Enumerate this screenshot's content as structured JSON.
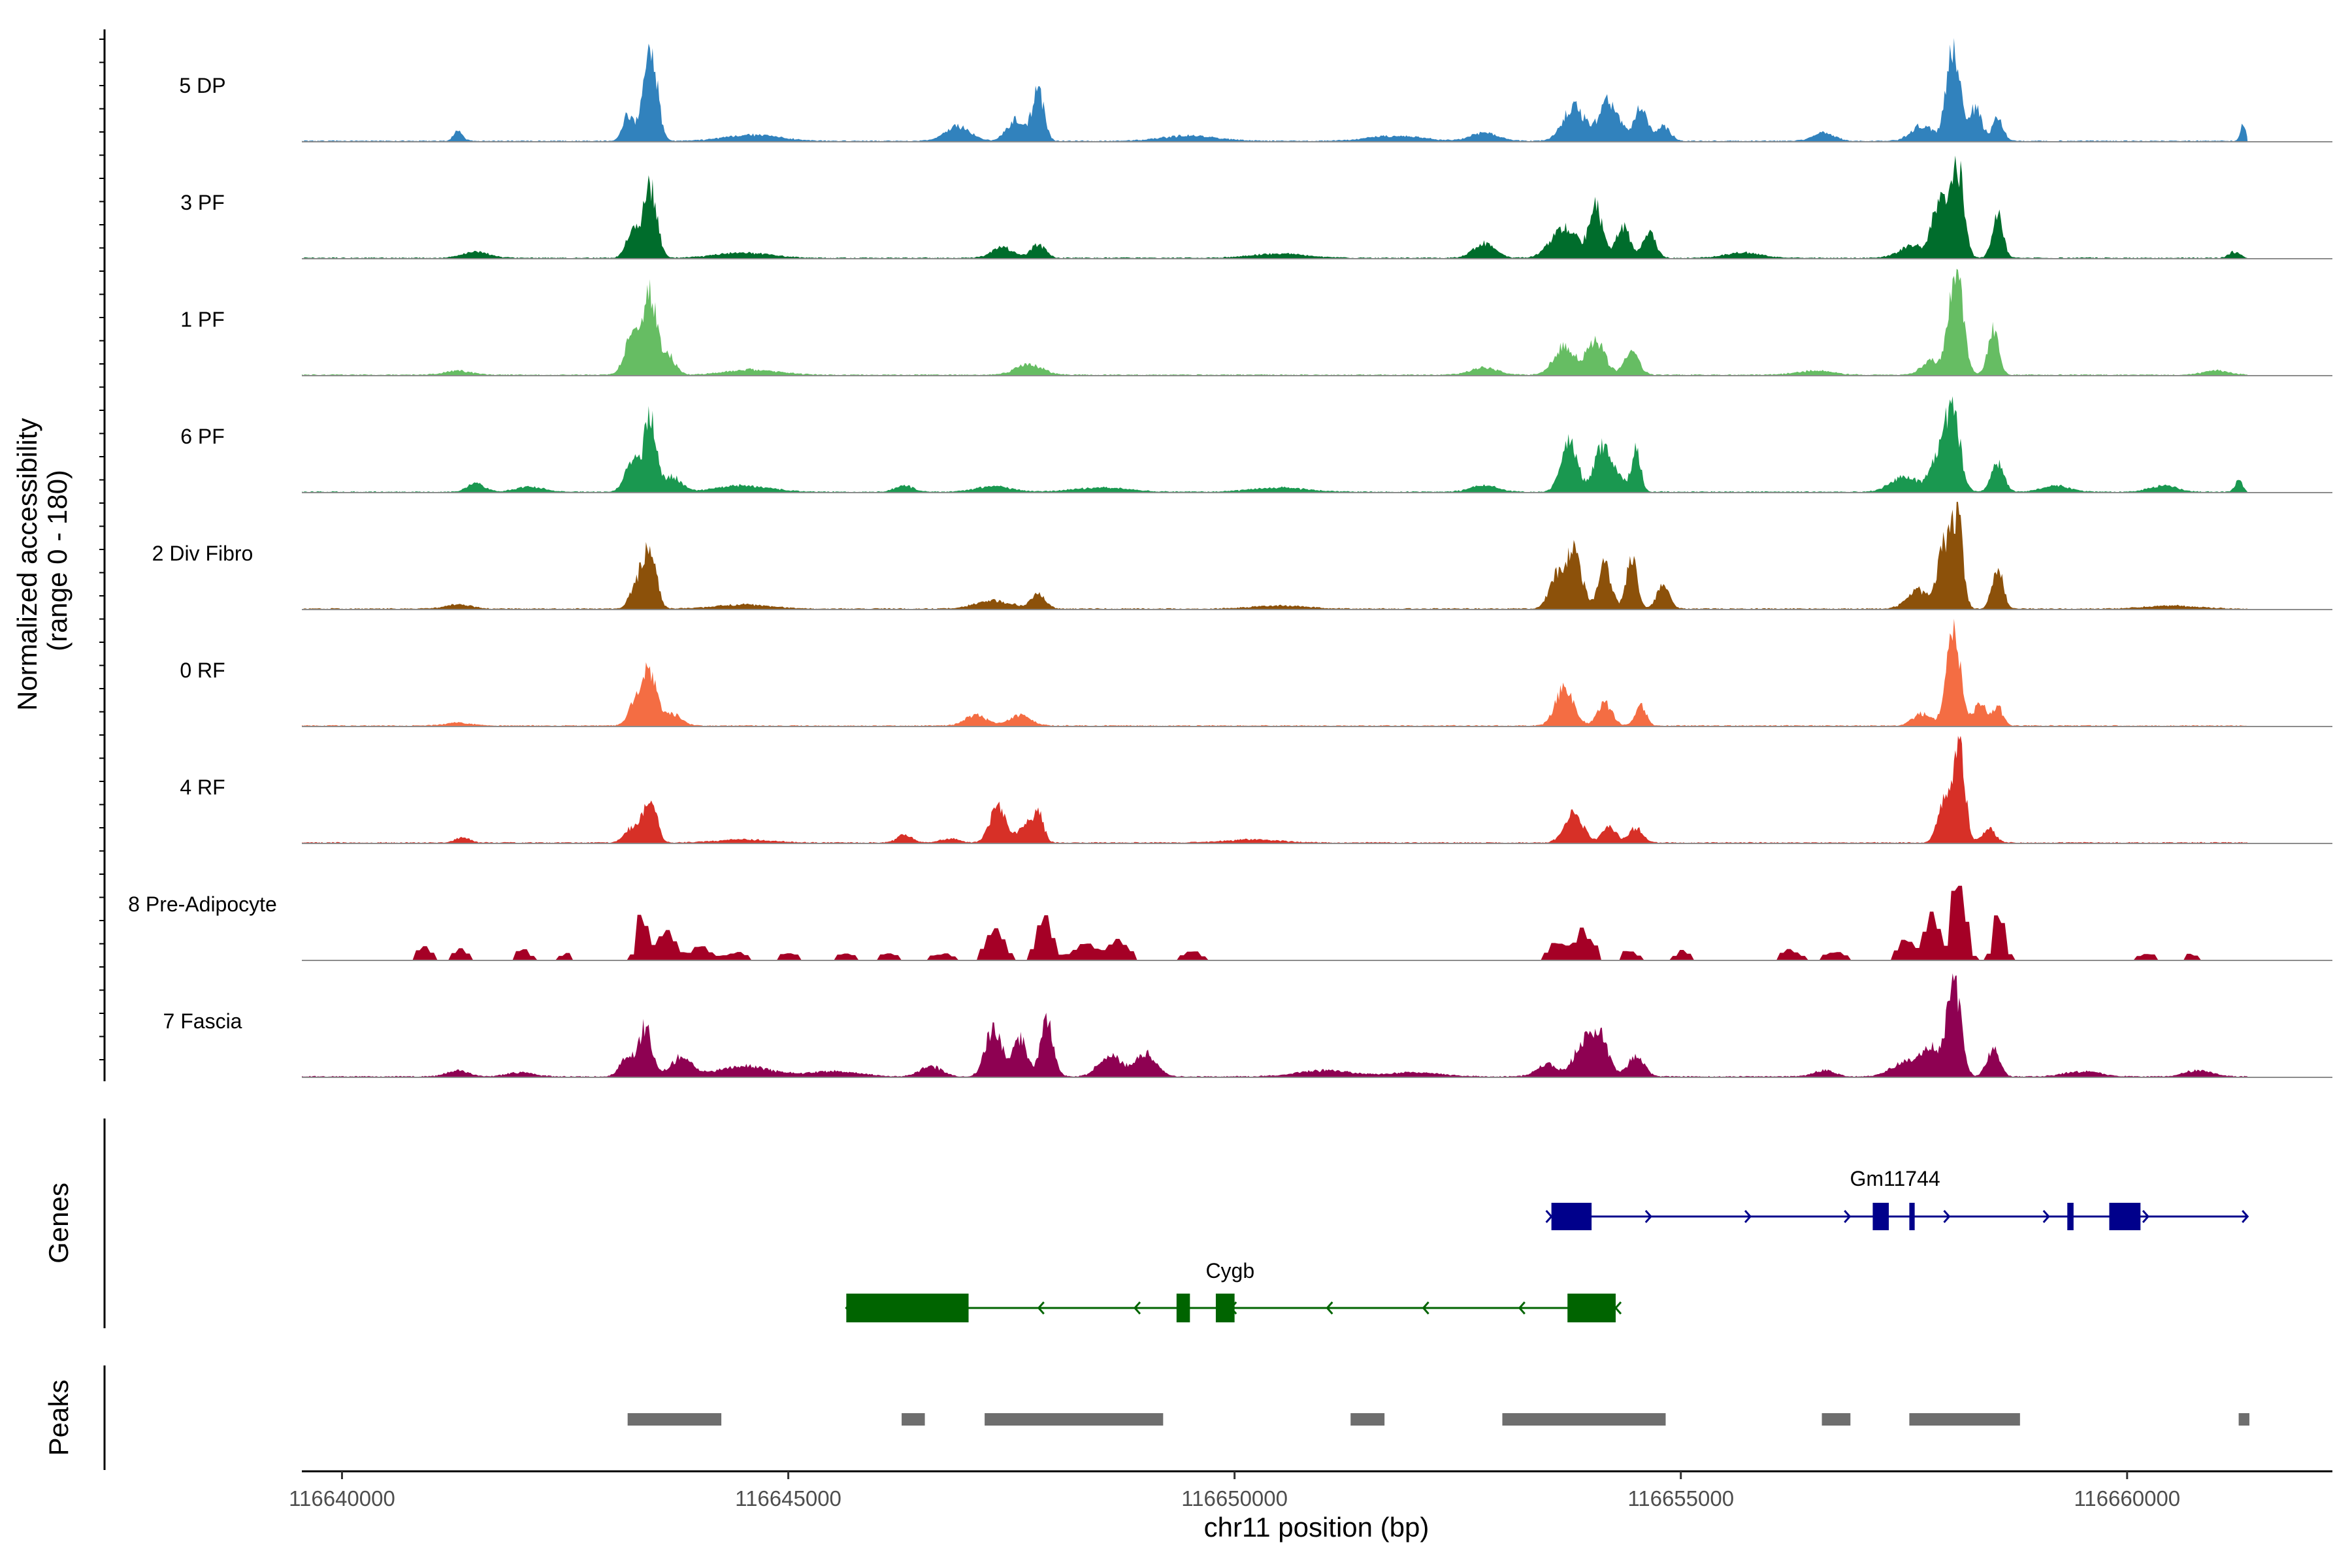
{
  "chart_data": {
    "type": "area",
    "title": "",
    "xlabel": "chr11 position (bp)",
    "ylabel_line1": "Normalized accessibility",
    "ylabel_line2": "(range 0 - 180)",
    "ylim": [
      0,
      180
    ],
    "xlim": [
      116639550,
      116662300
    ],
    "x_ticks": [
      116640000,
      116645000,
      116650000,
      116655000,
      116660000
    ],
    "x_tick_labels": [
      "116640000",
      "116645000",
      "116650000",
      "116655000",
      "116660000"
    ],
    "panel_labels": {
      "genes": "Genes",
      "peaks": "Peaks"
    },
    "track_start": 116639550,
    "track_end": 116661350,
    "series": [
      {
        "name": "5 DP",
        "color": "#3182bd",
        "gain": 1.0,
        "peaks": [
          [
            116641300,
            0.1,
            50
          ],
          [
            116643450,
            1.0,
            75
          ],
          [
            116643200,
            0.25,
            60
          ],
          [
            116644600,
            0.06,
            300
          ],
          [
            116646900,
            0.14,
            140
          ],
          [
            116647800,
            0.48,
            65
          ],
          [
            116647550,
            0.2,
            100
          ],
          [
            116649500,
            0.05,
            300
          ],
          [
            116651800,
            0.05,
            300
          ],
          [
            116653800,
            0.34,
            120
          ],
          [
            116654200,
            0.38,
            110
          ],
          [
            116654550,
            0.32,
            70
          ],
          [
            116654800,
            0.14,
            80
          ],
          [
            116652800,
            0.08,
            150
          ],
          [
            116656600,
            0.08,
            120
          ],
          [
            116657700,
            0.15,
            120
          ],
          [
            116658050,
            0.88,
            75
          ],
          [
            116658300,
            0.32,
            70
          ],
          [
            116658550,
            0.22,
            60
          ],
          [
            116661300,
            0.16,
            30
          ]
        ]
      },
      {
        "name": "3 PF",
        "color": "#006d2c",
        "gain": 1.0,
        "peaks": [
          [
            116641500,
            0.06,
            150
          ],
          [
            116643450,
            0.7,
            75
          ],
          [
            116643250,
            0.25,
            70
          ],
          [
            116644500,
            0.05,
            300
          ],
          [
            116647400,
            0.1,
            120
          ],
          [
            116647800,
            0.13,
            80
          ],
          [
            116650500,
            0.04,
            300
          ],
          [
            116652800,
            0.14,
            120
          ],
          [
            116653700,
            0.3,
            150
          ],
          [
            116654050,
            0.48,
            70
          ],
          [
            116654350,
            0.3,
            80
          ],
          [
            116654650,
            0.24,
            70
          ],
          [
            116655700,
            0.05,
            200
          ],
          [
            116657600,
            0.12,
            150
          ],
          [
            116657900,
            0.55,
            80
          ],
          [
            116658100,
            0.88,
            70
          ],
          [
            116658550,
            0.42,
            60
          ],
          [
            116661200,
            0.06,
            60
          ]
        ]
      },
      {
        "name": "1 PF",
        "color": "#66bd63",
        "gain": 1.0,
        "peaks": [
          [
            116641300,
            0.04,
            150
          ],
          [
            116643450,
            0.78,
            70
          ],
          [
            116643250,
            0.4,
            80
          ],
          [
            116643650,
            0.2,
            80
          ],
          [
            116644600,
            0.05,
            300
          ],
          [
            116647700,
            0.1,
            150
          ],
          [
            116652800,
            0.07,
            150
          ],
          [
            116653700,
            0.28,
            120
          ],
          [
            116654050,
            0.32,
            100
          ],
          [
            116654450,
            0.22,
            80
          ],
          [
            116656500,
            0.04,
            200
          ],
          [
            116657800,
            0.14,
            100
          ],
          [
            116658080,
            1.0,
            80
          ],
          [
            116658500,
            0.45,
            60
          ],
          [
            116661000,
            0.04,
            150
          ]
        ]
      },
      {
        "name": "6 PF",
        "color": "#1a9850",
        "gain": 1.0,
        "peaks": [
          [
            116641500,
            0.08,
            100
          ],
          [
            116642100,
            0.05,
            150
          ],
          [
            116643450,
            0.75,
            65
          ],
          [
            116643250,
            0.3,
            80
          ],
          [
            116643700,
            0.15,
            100
          ],
          [
            116644500,
            0.06,
            300
          ],
          [
            116646300,
            0.06,
            100
          ],
          [
            116647300,
            0.05,
            200
          ],
          [
            116648500,
            0.04,
            300
          ],
          [
            116650500,
            0.04,
            300
          ],
          [
            116652800,
            0.06,
            150
          ],
          [
            116653750,
            0.52,
            90
          ],
          [
            116654100,
            0.36,
            80
          ],
          [
            116654500,
            0.42,
            50
          ],
          [
            116654250,
            0.2,
            100
          ],
          [
            116657500,
            0.15,
            150
          ],
          [
            116657900,
            0.35,
            100
          ],
          [
            116658050,
            0.72,
            80
          ],
          [
            116658550,
            0.28,
            70
          ],
          [
            116659200,
            0.06,
            150
          ],
          [
            116660400,
            0.06,
            150
          ],
          [
            116661250,
            0.12,
            40
          ]
        ]
      },
      {
        "name": "2 Div Fibro",
        "color": "#8c510a",
        "gain": 1.0,
        "peaks": [
          [
            116641300,
            0.04,
            150
          ],
          [
            116643450,
            0.6,
            70
          ],
          [
            116643300,
            0.25,
            70
          ],
          [
            116644500,
            0.04,
            300
          ],
          [
            116647300,
            0.08,
            200
          ],
          [
            116647800,
            0.14,
            80
          ],
          [
            116650500,
            0.03,
            300
          ],
          [
            116653800,
            0.55,
            90
          ],
          [
            116653600,
            0.3,
            80
          ],
          [
            116654150,
            0.42,
            70
          ],
          [
            116654450,
            0.48,
            60
          ],
          [
            116654800,
            0.22,
            70
          ],
          [
            116657650,
            0.18,
            120
          ],
          [
            116657950,
            0.6,
            70
          ],
          [
            116658100,
            0.88,
            60
          ],
          [
            116658550,
            0.42,
            60
          ],
          [
            116660500,
            0.03,
            300
          ]
        ]
      },
      {
        "name": "0 RF",
        "color": "#f46d43",
        "gain": 1.0,
        "peaks": [
          [
            116641300,
            0.03,
            150
          ],
          [
            116643450,
            0.48,
            75
          ],
          [
            116643300,
            0.25,
            80
          ],
          [
            116643700,
            0.12,
            100
          ],
          [
            116647100,
            0.1,
            120
          ],
          [
            116647600,
            0.1,
            120
          ],
          [
            116653700,
            0.38,
            100
          ],
          [
            116654150,
            0.22,
            80
          ],
          [
            116654550,
            0.2,
            60
          ],
          [
            116657700,
            0.12,
            100
          ],
          [
            116658050,
            1.0,
            75
          ],
          [
            116658350,
            0.22,
            70
          ],
          [
            116658550,
            0.18,
            60
          ]
        ]
      },
      {
        "name": "4 RF",
        "color": "#d73027",
        "gain": 1.0,
        "peaks": [
          [
            116641350,
            0.05,
            80
          ],
          [
            116643450,
            0.48,
            70
          ],
          [
            116643250,
            0.15,
            80
          ],
          [
            116644500,
            0.03,
            300
          ],
          [
            116646300,
            0.08,
            80
          ],
          [
            116646800,
            0.04,
            100
          ],
          [
            116647350,
            0.35,
            90
          ],
          [
            116647650,
            0.18,
            70
          ],
          [
            116647800,
            0.28,
            60
          ],
          [
            116650200,
            0.03,
            300
          ],
          [
            116653800,
            0.3,
            100
          ],
          [
            116654200,
            0.15,
            80
          ],
          [
            116654500,
            0.15,
            70
          ],
          [
            116657950,
            0.42,
            70
          ],
          [
            116658120,
            0.9,
            65
          ],
          [
            116658450,
            0.14,
            70
          ]
        ]
      },
      {
        "name": "8 Pre-Adipocyte",
        "color": "#a50026",
        "gain": 1.0,
        "rough": true,
        "peaks": [
          [
            116640900,
            0.12,
            80
          ],
          [
            116641300,
            0.1,
            80
          ],
          [
            116642000,
            0.1,
            80
          ],
          [
            116642500,
            0.06,
            80
          ],
          [
            116643350,
            0.45,
            60
          ],
          [
            116643600,
            0.28,
            100
          ],
          [
            116644000,
            0.12,
            120
          ],
          [
            116644400,
            0.08,
            100
          ],
          [
            116645000,
            0.08,
            100
          ],
          [
            116645600,
            0.06,
            100
          ],
          [
            116646100,
            0.06,
            100
          ],
          [
            116646700,
            0.06,
            100
          ],
          [
            116647300,
            0.3,
            100
          ],
          [
            116647850,
            0.38,
            80
          ],
          [
            116648300,
            0.15,
            150
          ],
          [
            116648700,
            0.18,
            100
          ],
          [
            116649500,
            0.1,
            80
          ],
          [
            116653600,
            0.18,
            100
          ],
          [
            116653900,
            0.28,
            100
          ],
          [
            116654400,
            0.08,
            100
          ],
          [
            116655000,
            0.08,
            80
          ],
          [
            116656200,
            0.1,
            100
          ],
          [
            116656700,
            0.08,
            100
          ],
          [
            116657500,
            0.2,
            80
          ],
          [
            116657800,
            0.45,
            80
          ],
          [
            116658100,
            0.9,
            70
          ],
          [
            116658550,
            0.48,
            60
          ],
          [
            116660200,
            0.05,
            100
          ],
          [
            116660700,
            0.06,
            80
          ]
        ]
      },
      {
        "name": "7 Fascia",
        "color": "#8e0152",
        "gain": 1.0,
        "peaks": [
          [
            116641300,
            0.06,
            120
          ],
          [
            116642000,
            0.04,
            150
          ],
          [
            116643400,
            0.48,
            70
          ],
          [
            116643200,
            0.2,
            80
          ],
          [
            116643800,
            0.18,
            120
          ],
          [
            116644500,
            0.1,
            300
          ],
          [
            116645500,
            0.05,
            300
          ],
          [
            116646600,
            0.1,
            120
          ],
          [
            116647300,
            0.48,
            90
          ],
          [
            116647600,
            0.36,
            80
          ],
          [
            116647900,
            0.55,
            70
          ],
          [
            116648600,
            0.22,
            120
          ],
          [
            116649000,
            0.22,
            120
          ],
          [
            116651000,
            0.06,
            300
          ],
          [
            116652000,
            0.04,
            300
          ],
          [
            116653500,
            0.12,
            120
          ],
          [
            116653900,
            0.32,
            100
          ],
          [
            116654100,
            0.38,
            90
          ],
          [
            116654500,
            0.2,
            90
          ],
          [
            116656600,
            0.06,
            120
          ],
          [
            116657500,
            0.14,
            150
          ],
          [
            116658060,
            0.95,
            75
          ],
          [
            116657800,
            0.3,
            100
          ],
          [
            116658500,
            0.28,
            70
          ],
          [
            116659500,
            0.05,
            200
          ],
          [
            116660800,
            0.06,
            150
          ]
        ]
      }
    ],
    "genes": [
      {
        "name": "Gm11744",
        "strand": "+",
        "color": "#00008b",
        "start": 116653550,
        "end": 116661350,
        "exons": [
          [
            116653550,
            116654000
          ],
          [
            116657150,
            116657330
          ],
          [
            116657560,
            116657620
          ],
          [
            116659330,
            116659400
          ],
          [
            116659800,
            116660150
          ]
        ]
      },
      {
        "name": "Cygb",
        "strand": "-",
        "color": "#006400",
        "start": 116645650,
        "end": 116654270,
        "exons": [
          [
            116645650,
            116647020
          ],
          [
            116649350,
            116649500
          ],
          [
            116649790,
            116650000
          ],
          [
            116653730,
            116654270
          ]
        ]
      }
    ],
    "peaks": [
      [
        116643200,
        116644250
      ],
      [
        116646270,
        116646530
      ],
      [
        116647200,
        116649200
      ],
      [
        116651300,
        116651680
      ],
      [
        116653000,
        116654830
      ],
      [
        116656580,
        116656900
      ],
      [
        116657560,
        116658800
      ],
      [
        116661250,
        116661370
      ]
    ]
  }
}
